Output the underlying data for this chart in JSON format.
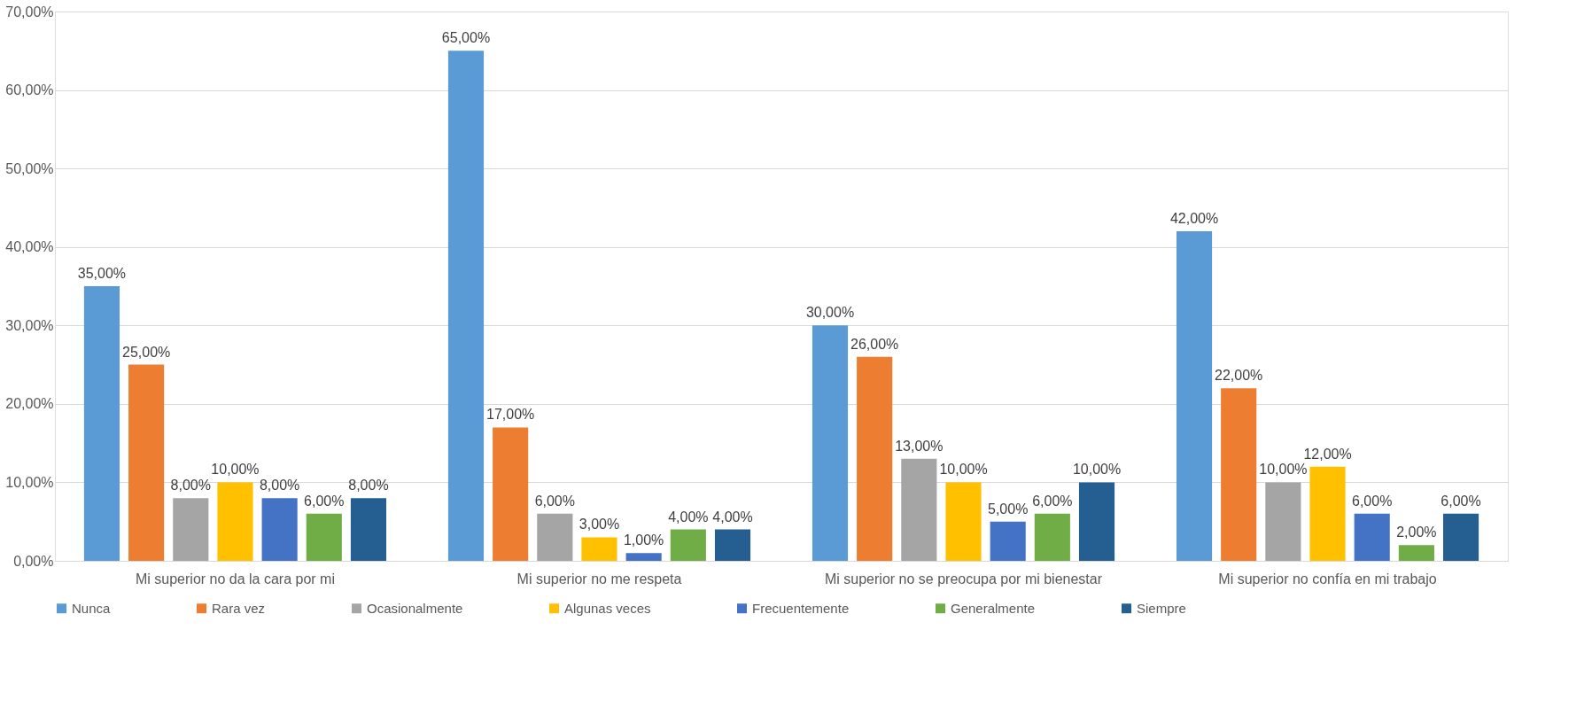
{
  "chart_data": {
    "type": "bar",
    "categories": [
      "Mi superior no da la cara por mi",
      "Mi superior no me respeta",
      "Mi superior no se preocupa por mi bienestar",
      "Mi superior no confía en mi trabajo"
    ],
    "series": [
      {
        "name": "Nunca",
        "color": "#5b9bd5",
        "values": [
          35,
          65,
          30,
          42
        ],
        "value_labels": [
          "35,00%",
          "65,00%",
          "30,00%",
          "42,00%"
        ]
      },
      {
        "name": "Rara vez",
        "color": "#ed7d31",
        "values": [
          25,
          17,
          26,
          22
        ],
        "value_labels": [
          "25,00%",
          "17,00%",
          "26,00%",
          "22,00%"
        ]
      },
      {
        "name": "Ocasionalmente",
        "color": "#a5a5a5",
        "values": [
          8,
          6,
          13,
          10
        ],
        "value_labels": [
          "8,00%",
          "6,00%",
          "13,00%",
          "10,00%"
        ]
      },
      {
        "name": "Algunas veces",
        "color": "#ffc000",
        "values": [
          10,
          3,
          10,
          12
        ],
        "value_labels": [
          "10,00%",
          "3,00%",
          "10,00%",
          "12,00%"
        ]
      },
      {
        "name": "Frecuentemente",
        "color": "#4472c4",
        "values": [
          8,
          1,
          5,
          6
        ],
        "value_labels": [
          "8,00%",
          "1,00%",
          "5,00%",
          "6,00%"
        ]
      },
      {
        "name": "Generalmente",
        "color": "#70ad47",
        "values": [
          6,
          4,
          6,
          2
        ],
        "value_labels": [
          "6,00%",
          "4,00%",
          "6,00%",
          "2,00%"
        ]
      },
      {
        "name": "Siempre",
        "color": "#255e91",
        "values": [
          8,
          4,
          10,
          6
        ],
        "value_labels": [
          "8,00%",
          "4,00%",
          "10,00%",
          "6,00%"
        ]
      }
    ],
    "ylim": [
      0,
      70
    ],
    "yticks": [
      {
        "value": 0,
        "label": "0,00%"
      },
      {
        "value": 10,
        "label": "10,00%"
      },
      {
        "value": 20,
        "label": "20,00%"
      },
      {
        "value": 30,
        "label": "30,00%"
      },
      {
        "value": 40,
        "label": "40,00%"
      },
      {
        "value": 50,
        "label": "50,00%"
      },
      {
        "value": 60,
        "label": "60,00%"
      },
      {
        "value": 70,
        "label": "70,00%"
      }
    ],
    "grid": "y",
    "legend": "bottom"
  }
}
